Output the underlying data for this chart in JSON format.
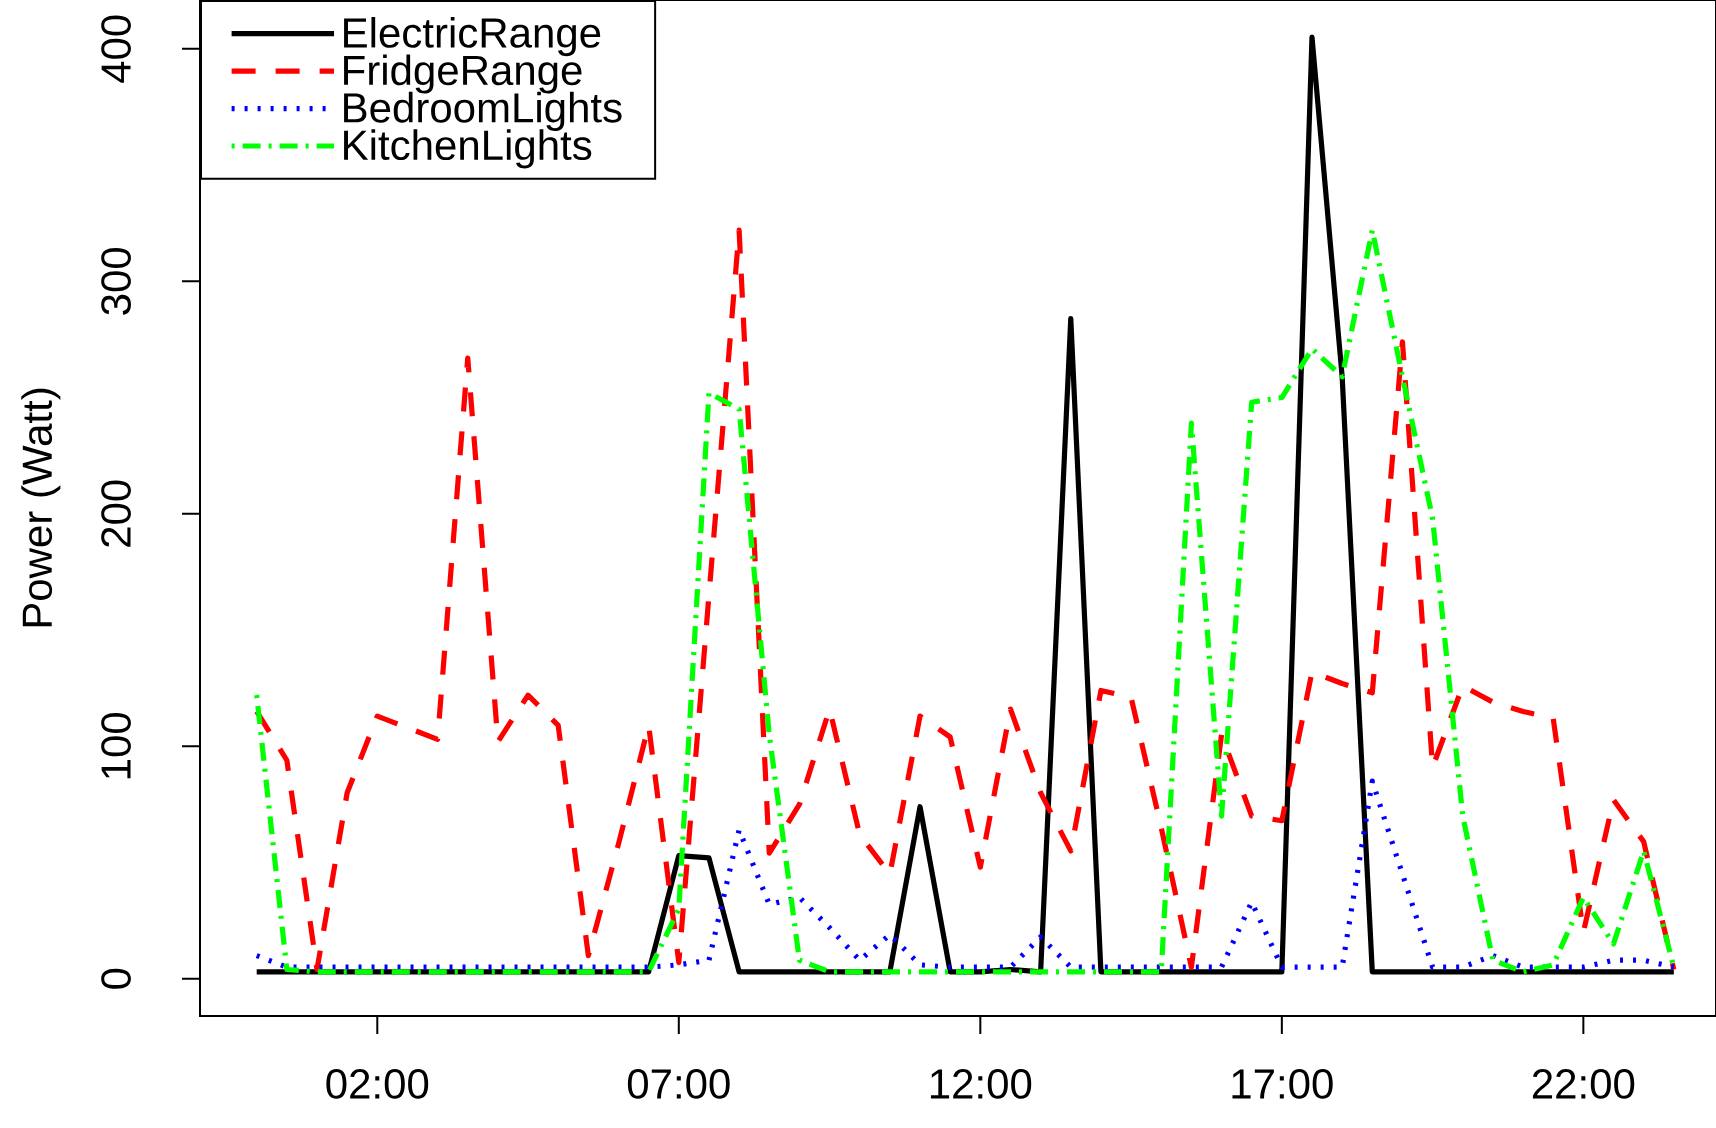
{
  "chart_data": {
    "type": "line",
    "ylabel": "Power (Watt)",
    "x": [
      0,
      0.5,
      1,
      1.5,
      2,
      2.5,
      3,
      3.5,
      4,
      4.5,
      5,
      5.5,
      6,
      6.5,
      7,
      7.5,
      8,
      8.5,
      9,
      9.5,
      10,
      10.5,
      11,
      11.5,
      12,
      12.5,
      13,
      13.5,
      14,
      14.5,
      15,
      15.5,
      16,
      16.5,
      17,
      17.5,
      18,
      18.5,
      19,
      19.5,
      20,
      20.5,
      21,
      21.5,
      22,
      22.5,
      23,
      23.5
    ],
    "xlim": [
      -0.94,
      24.2
    ],
    "xticks": [
      {
        "value": 2,
        "label": "02:00"
      },
      {
        "value": 7,
        "label": "07:00"
      },
      {
        "value": 12,
        "label": "12:00"
      },
      {
        "value": 17,
        "label": "17:00"
      },
      {
        "value": 22,
        "label": "22:00"
      }
    ],
    "ylim": [
      -16,
      421
    ],
    "yticks": [
      0,
      100,
      200,
      300,
      400
    ],
    "legend": "top left",
    "marker": "none",
    "grid": false,
    "series": [
      {
        "name": "ElectricRange",
        "color": "#000000",
        "line_style": "solid",
        "values": [
          3,
          3,
          3,
          3,
          3,
          3,
          3,
          3,
          3,
          3,
          3,
          3,
          3,
          3,
          53,
          52,
          3,
          3,
          3,
          3,
          3,
          3,
          74,
          3,
          3,
          4,
          3,
          284,
          3,
          3,
          3,
          3,
          3,
          3,
          3,
          405,
          259,
          3,
          3,
          3,
          3,
          3,
          3,
          3,
          3,
          3,
          3,
          3
        ]
      },
      {
        "name": "FridgeRange",
        "color": "#ff0000",
        "line_style": "dashed",
        "values": [
          115,
          94,
          4,
          80,
          113,
          108,
          103,
          267,
          102,
          122,
          109,
          10,
          58,
          109,
          7,
          165,
          322,
          54,
          75,
          116,
          62,
          45,
          113,
          104,
          48,
          116,
          80,
          55,
          124,
          121,
          65,
          5,
          105,
          70,
          68,
          132,
          127,
          123,
          274,
          91,
          126,
          119,
          115,
          112,
          20,
          77,
          59,
          4
        ]
      },
      {
        "name": "BedroomLights",
        "color": "#0000ff",
        "line_style": "dotted",
        "values": [
          10,
          5,
          5,
          5,
          5,
          5,
          5,
          5,
          5,
          5,
          5,
          5,
          5,
          5,
          6,
          8,
          64,
          32,
          35,
          22,
          8,
          19,
          6,
          5,
          5,
          5,
          18,
          5,
          5,
          5,
          5,
          5,
          5,
          33,
          5,
          5,
          5,
          85,
          45,
          5,
          5,
          10,
          5,
          5,
          5,
          8,
          8,
          5
        ]
      },
      {
        "name": "KitchenLights",
        "color": "#00ff00",
        "line_style": "dashdot",
        "values": [
          122,
          4,
          3,
          3,
          3,
          3,
          3,
          3,
          3,
          3,
          3,
          3,
          3,
          3,
          30,
          252,
          245,
          105,
          8,
          3,
          3,
          3,
          3,
          3,
          3,
          3,
          3,
          3,
          3,
          3,
          3,
          239,
          70,
          248,
          250,
          271,
          259,
          322,
          259,
          198,
          70,
          8,
          3,
          6,
          35,
          15,
          55,
          5
        ]
      }
    ]
  }
}
